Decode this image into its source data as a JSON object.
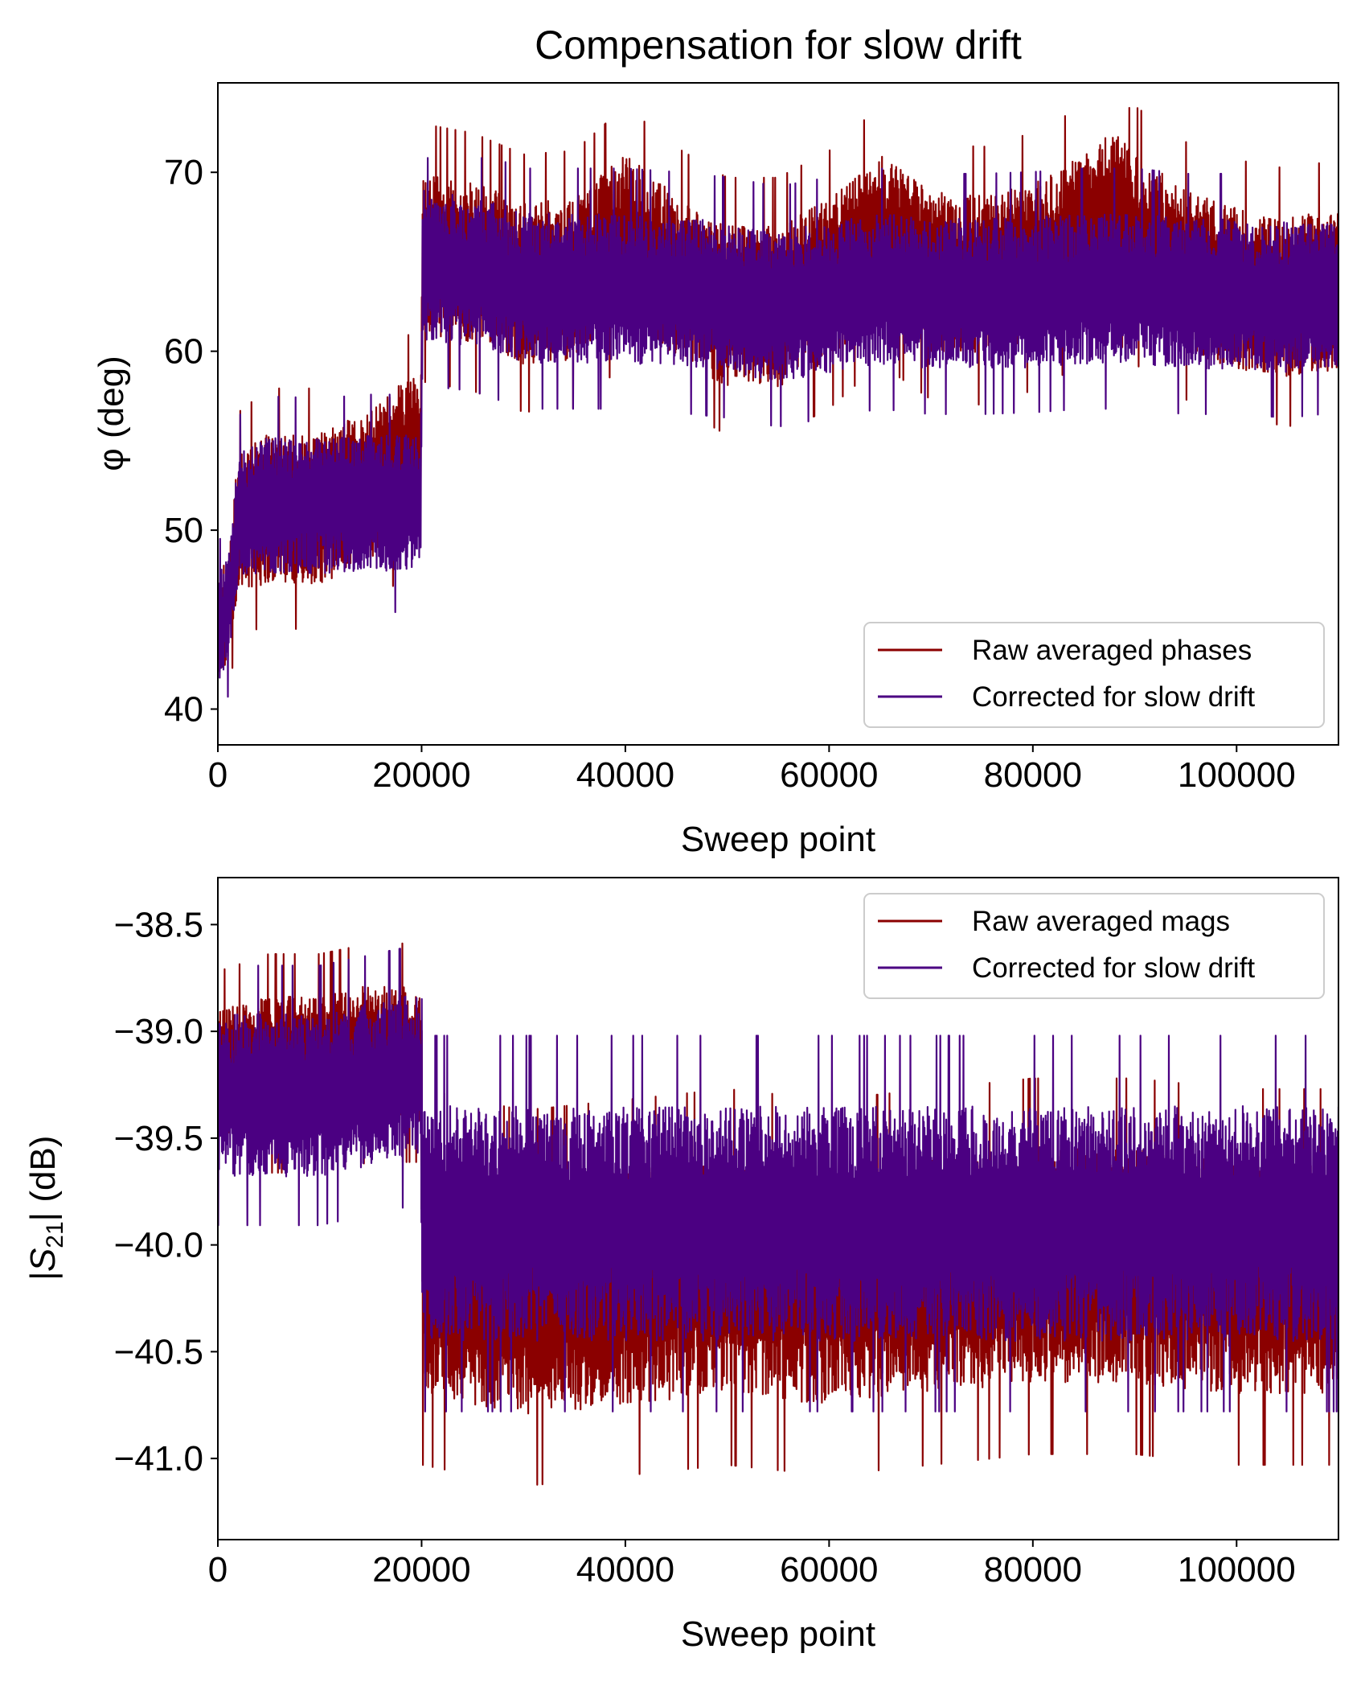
{
  "figure": {
    "title": "Compensation for slow drift"
  },
  "colors": {
    "raw": "#8b0000",
    "corrected": "#4b0082",
    "axis": "#000000",
    "legend_border": "#cccccc"
  },
  "chart_data": [
    {
      "type": "line",
      "id": "phase",
      "title": "Compensation for slow drift",
      "xlabel": "Sweep point",
      "ylabel": "φ (deg)",
      "xlim": [
        0,
        110000
      ],
      "ylim": [
        38,
        75
      ],
      "xticks": [
        0,
        20000,
        40000,
        60000,
        80000,
        100000
      ],
      "xtick_labels": [
        "0",
        "20000",
        "40000",
        "60000",
        "80000",
        "100000"
      ],
      "yticks": [
        40,
        50,
        60,
        70
      ],
      "ytick_labels": [
        "40",
        "50",
        "60",
        "70"
      ],
      "grid": false,
      "legend_position": "lower-right",
      "series": [
        {
          "name": "Raw averaged phases",
          "color": "#8b0000",
          "x": [
            0,
            1000,
            2000,
            5000,
            10000,
            15000,
            18000,
            19900,
            20100,
            25000,
            30000,
            35000,
            40000,
            45000,
            50000,
            55000,
            60000,
            65000,
            70000,
            75000,
            80000,
            85000,
            88000,
            90000,
            95000,
            100000,
            105000,
            110000
          ],
          "center": [
            44.5,
            45.5,
            50.5,
            51.2,
            51.2,
            52.5,
            54,
            54.5,
            65.5,
            65,
            63.8,
            64,
            66.5,
            64.2,
            62.5,
            62.5,
            64,
            66.5,
            64.5,
            64.2,
            65,
            66.5,
            68,
            66.5,
            64.5,
            63.5,
            63,
            63.5
          ],
          "halfwidth": [
            3,
            3,
            3.8,
            4.2,
            4.2,
            4.2,
            4.2,
            4.2,
            4.5,
            4.5,
            4.5,
            4.5,
            4.5,
            4.5,
            4.5,
            4.5,
            4.5,
            4.5,
            4.5,
            4.5,
            4.5,
            4.5,
            4.5,
            4.5,
            4.5,
            4.5,
            4.5,
            4.5
          ],
          "max": 73.6,
          "min": 40.3
        },
        {
          "name": "Corrected for slow drift",
          "color": "#4b0082",
          "x": [
            0,
            1000,
            2000,
            5000,
            10000,
            15000,
            18000,
            19900,
            20100,
            25000,
            30000,
            35000,
            40000,
            45000,
            50000,
            55000,
            60000,
            65000,
            70000,
            75000,
            80000,
            85000,
            88000,
            90000,
            95000,
            100000,
            105000,
            110000
          ],
          "center": [
            44.5,
            45.5,
            50.8,
            51.4,
            51.3,
            51.5,
            51.5,
            51.5,
            64.8,
            64.5,
            63.5,
            63.5,
            63.5,
            63.3,
            63,
            62.5,
            63,
            63.5,
            63.2,
            63.2,
            63.3,
            63.5,
            63.5,
            63.5,
            63.2,
            63.2,
            63,
            63.3
          ],
          "halfwidth": [
            3,
            3,
            3.5,
            3.8,
            3.8,
            3.8,
            3.8,
            3.8,
            4.2,
            4.2,
            4.2,
            4.2,
            4.2,
            4.2,
            4.2,
            4.2,
            4.2,
            4.2,
            4.2,
            4.2,
            4.2,
            4.2,
            4.2,
            4.2,
            4.2,
            4.2,
            4.2,
            4.2
          ],
          "max": 70.8,
          "min": 40.3
        }
      ]
    },
    {
      "type": "line",
      "id": "magnitude",
      "title": "",
      "xlabel": "Sweep point",
      "ylabel": "|S21| (dB)",
      "ylabel_main": "|S",
      "ylabel_sub": "21",
      "ylabel_rest": "| (dB)",
      "xlim": [
        0,
        110000
      ],
      "ylim": [
        -41.38,
        -38.28
      ],
      "xticks": [
        0,
        20000,
        40000,
        60000,
        80000,
        100000
      ],
      "xtick_labels": [
        "0",
        "20000",
        "40000",
        "60000",
        "80000",
        "100000"
      ],
      "yticks": [
        -41.0,
        -40.5,
        -40.0,
        -39.5,
        -39.0,
        -38.5
      ],
      "ytick_labels": [
        "−41.0",
        "−40.5",
        "−40.0",
        "−39.5",
        "−39.0",
        "−38.5"
      ],
      "grid": false,
      "legend_position": "upper-right",
      "series": [
        {
          "name": "Raw averaged mags",
          "color": "#8b0000",
          "x": [
            0,
            5000,
            10000,
            15000,
            19900,
            20100,
            30000,
            40000,
            50000,
            60000,
            70000,
            80000,
            90000,
            100000,
            110000
          ],
          "center": [
            -39.2,
            -39.15,
            -39.15,
            -39.1,
            -39.1,
            -40.15,
            -40.25,
            -40.2,
            -40.15,
            -40.2,
            -40.15,
            -40.1,
            -40.1,
            -40.15,
            -40.15
          ],
          "halfwidth": [
            0.3,
            0.32,
            0.32,
            0.32,
            0.32,
            0.55,
            0.55,
            0.55,
            0.55,
            0.55,
            0.55,
            0.55,
            0.55,
            0.55,
            0.55
          ],
          "max": -38.43,
          "min": -41.24
        },
        {
          "name": "Corrected for slow drift",
          "color": "#4b0082",
          "x": [
            0,
            5000,
            10000,
            15000,
            19900,
            20100,
            30000,
            40000,
            50000,
            60000,
            70000,
            80000,
            90000,
            100000,
            110000
          ],
          "center": [
            -39.3,
            -39.3,
            -39.3,
            -39.25,
            -39.2,
            -39.9,
            -39.9,
            -39.9,
            -39.9,
            -39.9,
            -39.9,
            -39.9,
            -39.9,
            -39.9,
            -39.9
          ],
          "halfwidth": [
            0.38,
            0.38,
            0.38,
            0.38,
            0.38,
            0.55,
            0.55,
            0.55,
            0.55,
            0.55,
            0.55,
            0.55,
            0.55,
            0.55,
            0.55
          ],
          "max": -38.41,
          "min": -41.0
        }
      ]
    }
  ]
}
